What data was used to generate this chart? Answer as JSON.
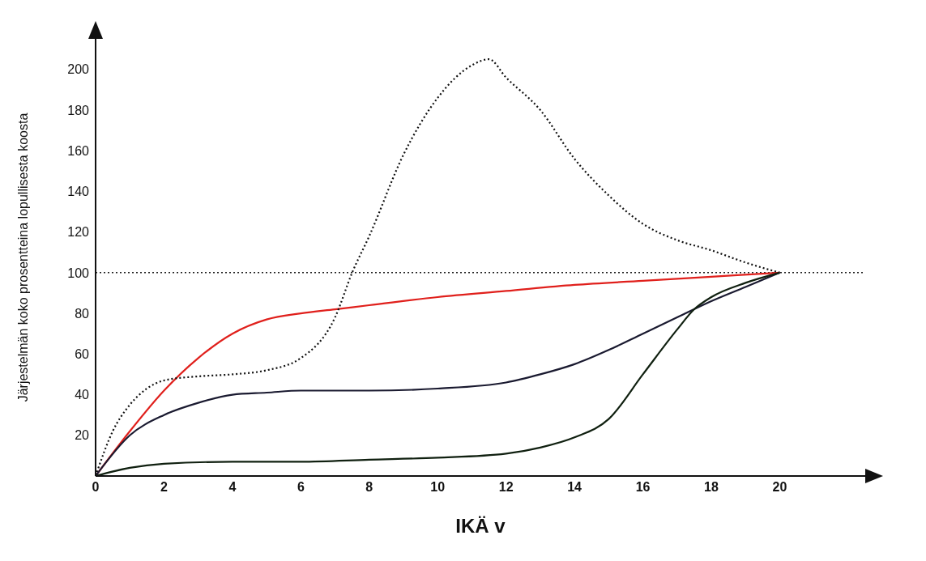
{
  "chart_data": {
    "type": "line",
    "xlabel": "IKÄ v",
    "ylabel": "Järjestelmän koko prosentteina lopullisesta koosta",
    "xlim": [
      0,
      22.5
    ],
    "xticks": [
      0,
      2,
      4,
      6,
      8,
      10,
      12,
      14,
      16,
      18,
      20
    ],
    "ylim": [
      0,
      215
    ],
    "yticks": [
      20,
      40,
      60,
      80,
      100,
      120,
      140,
      160,
      180,
      200
    ],
    "grid": false,
    "legend": false,
    "marker": "none",
    "ref_lines": [
      {
        "axis": "y",
        "value": 100,
        "line_style": "dotted",
        "color": "#222222"
      }
    ],
    "series": [
      {
        "color": "#e0201c",
        "line_style": "solid",
        "x": [
          0,
          1,
          2,
          3,
          4,
          5,
          6,
          7,
          8,
          10,
          12,
          14,
          16,
          18,
          20
        ],
        "values": [
          0,
          22,
          42,
          58,
          70,
          77,
          80,
          82,
          84,
          88,
          91,
          94,
          96,
          98,
          100
        ]
      },
      {
        "color": "#111111",
        "line_style": "dotted",
        "x": [
          0,
          0.5,
          1,
          1.5,
          2,
          3,
          4,
          5,
          6,
          7,
          7.5,
          8,
          9,
          10,
          11,
          11.5,
          12,
          13,
          14,
          15,
          16,
          17,
          18,
          19,
          20
        ],
        "values": [
          0,
          22,
          35,
          43,
          47,
          49,
          50,
          52,
          58,
          78,
          100,
          118,
          158,
          186,
          202,
          205,
          196,
          180,
          156,
          138,
          124,
          116,
          111,
          105,
          100
        ]
      },
      {
        "color": "#1a1a30",
        "line_style": "solid",
        "x": [
          0,
          1,
          2,
          3,
          4,
          5,
          6,
          8,
          10,
          12,
          13,
          14,
          15,
          16,
          17,
          18,
          19,
          20
        ],
        "values": [
          0,
          20,
          30,
          36,
          40,
          41,
          42,
          42,
          43,
          46,
          50,
          55,
          62,
          70,
          78,
          86,
          93,
          100
        ]
      },
      {
        "color": "#102010",
        "line_style": "solid",
        "x": [
          0,
          1,
          2,
          4,
          6,
          8,
          10,
          12,
          13,
          14,
          15,
          16,
          17,
          17.5,
          18,
          19,
          20
        ],
        "values": [
          0,
          4,
          6,
          7,
          7,
          8,
          9,
          11,
          14,
          19,
          28,
          50,
          72,
          82,
          88,
          95,
          100
        ]
      }
    ]
  }
}
